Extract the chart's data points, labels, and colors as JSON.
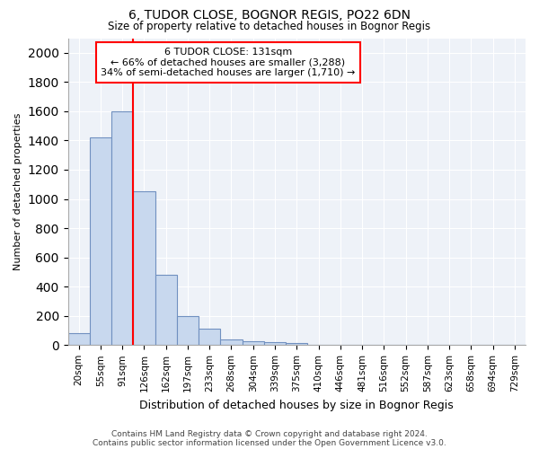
{
  "title1": "6, TUDOR CLOSE, BOGNOR REGIS, PO22 6DN",
  "title2": "Size of property relative to detached houses in Bognor Regis",
  "xlabel": "Distribution of detached houses by size in Bognor Regis",
  "ylabel": "Number of detached properties",
  "categories": [
    "20sqm",
    "55sqm",
    "91sqm",
    "126sqm",
    "162sqm",
    "197sqm",
    "233sqm",
    "268sqm",
    "304sqm",
    "339sqm",
    "375sqm",
    "410sqm",
    "446sqm",
    "481sqm",
    "516sqm",
    "552sqm",
    "587sqm",
    "623sqm",
    "658sqm",
    "694sqm",
    "729sqm"
  ],
  "values": [
    80,
    1420,
    1600,
    1050,
    480,
    200,
    110,
    40,
    25,
    20,
    15,
    5,
    0,
    0,
    0,
    0,
    0,
    0,
    0,
    0,
    0
  ],
  "bar_color": "#c8d8ee",
  "bar_edge_color": "#7090c0",
  "annotation_line1": "6 TUDOR CLOSE: 131sqm",
  "annotation_line2": "← 66% of detached houses are smaller (3,288)",
  "annotation_line3": "34% of semi-detached houses are larger (1,710) →",
  "ylim": [
    0,
    2100
  ],
  "yticks": [
    0,
    200,
    400,
    600,
    800,
    1000,
    1200,
    1400,
    1600,
    1800,
    2000
  ],
  "footer1": "Contains HM Land Registry data © Crown copyright and database right 2024.",
  "footer2": "Contains public sector information licensed under the Open Government Licence v3.0.",
  "bg_color": "#ffffff",
  "plot_bg_color": "#eef2f8",
  "grid_color": "#ffffff"
}
